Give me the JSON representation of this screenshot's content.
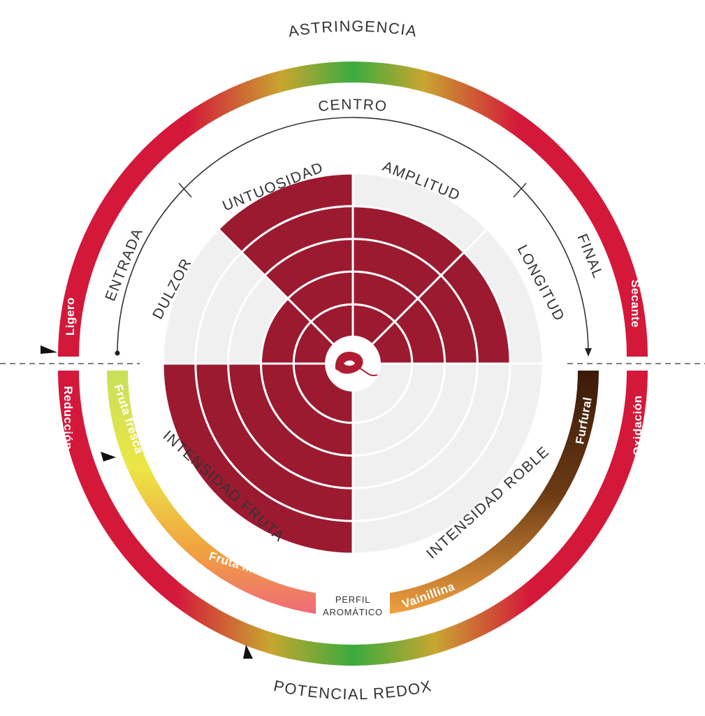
{
  "title": "ASTRINGENCIA",
  "bottom_title": "POTENCIAL REDOX",
  "arc_labels": {
    "centro": "CENTRO",
    "entrada": "ENTRADA",
    "final": "FINAL"
  },
  "sectors": [
    {
      "label": "DULZOR",
      "level": 2,
      "max": 5
    },
    {
      "label": "UNTUOSIDAD",
      "level": 5,
      "max": 5
    },
    {
      "label": "AMPLITUD",
      "level": 4,
      "max": 5
    },
    {
      "label": "LONGITUD",
      "level": 4,
      "max": 5
    }
  ],
  "half_sectors": [
    {
      "label": "INTENSIDAD FRUTA",
      "level": 5,
      "max": 5
    },
    {
      "label": "INTENSIDAD ROBLE",
      "level": 0,
      "max": 5
    }
  ],
  "outer_band": {
    "left_top": "Ligero",
    "right_top": "Secante",
    "left_bottom": "Reducción",
    "right_bottom": "Oxidación"
  },
  "aroma_band": {
    "fruta_fresca": "Fruta fresca",
    "fruta_madura": "Fruta madura",
    "vainillina": "Vainillina",
    "furfural": "Furfural",
    "center_line1": "PERFIL",
    "center_line2": "AROMÁTICO"
  },
  "colors": {
    "wine": "#9b1a30",
    "light_gray": "#f0f0f0",
    "red": "#d4183a",
    "green": "#3aab3e",
    "yellow": "#e8e04a",
    "orange": "#f0a040",
    "pink": "#f06a7a",
    "brown": "#4a2410"
  },
  "icons": {
    "logo": "wine-drop-logo-icon",
    "marker": "triangle-marker-icon"
  }
}
